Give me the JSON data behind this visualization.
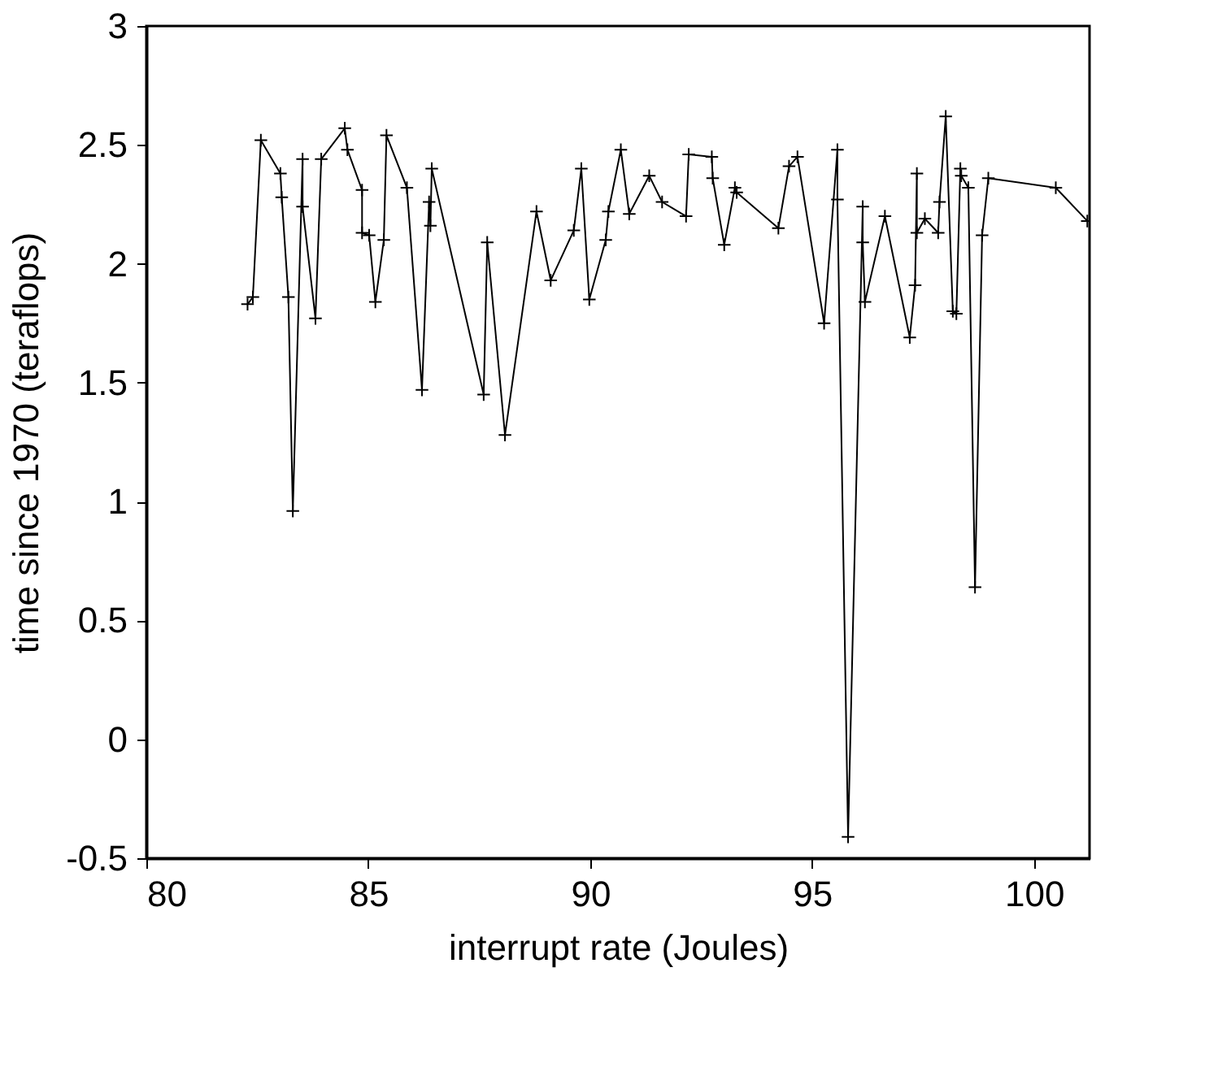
{
  "chart_data": {
    "type": "line",
    "xlabel": "interrupt rate (Joules)",
    "ylabel": "time since 1970 (teraflops)",
    "x": [
      82.28,
      82.4,
      82.58,
      83.02,
      83.05,
      83.2,
      83.3,
      83.52,
      83.52,
      83.81,
      83.94,
      84.47,
      84.53,
      84.86,
      84.86,
      85.02,
      85.16,
      85.35,
      85.41,
      85.87,
      86.21,
      86.37,
      86.4,
      86.43,
      87.6,
      87.68,
      88.08,
      88.79,
      89.11,
      89.63,
      89.8,
      89.98,
      90.35,
      90.41,
      90.69,
      90.88,
      91.33,
      91.62,
      92.16,
      92.22,
      92.74,
      92.76,
      93.02,
      93.26,
      93.3,
      94.24,
      94.48,
      94.67,
      95.27,
      95.57,
      95.57,
      95.81,
      96.14,
      96.14,
      96.19,
      96.64,
      97.2,
      97.32,
      97.36,
      97.36,
      97.54,
      97.84,
      97.87,
      98.01,
      98.17,
      98.25,
      98.34,
      98.36,
      98.52,
      98.67,
      98.83,
      98.97,
      100.49,
      101.2
    ],
    "series": [
      {
        "color": "#000000",
        "values": [
          1.83,
          1.86,
          2.52,
          2.38,
          2.28,
          1.86,
          0.96,
          2.44,
          2.24,
          1.77,
          2.44,
          2.57,
          2.48,
          2.31,
          2.13,
          2.12,
          1.84,
          2.1,
          2.54,
          2.32,
          1.47,
          2.26,
          2.16,
          2.4,
          1.45,
          2.09,
          1.28,
          2.22,
          1.93,
          2.14,
          2.4,
          1.85,
          2.1,
          2.22,
          2.48,
          2.21,
          2.37,
          2.26,
          2.2,
          2.46,
          2.45,
          2.36,
          2.08,
          2.32,
          2.3,
          2.15,
          2.41,
          2.45,
          1.75,
          2.48,
          2.27,
          -0.41,
          2.24,
          2.09,
          1.84,
          2.2,
          1.69,
          1.91,
          2.38,
          2.13,
          2.19,
          2.13,
          2.26,
          2.62,
          1.8,
          1.79,
          2.4,
          2.37,
          2.32,
          0.64,
          2.12,
          2.36,
          2.32,
          2.18
        ]
      }
    ],
    "xlim": [
      80,
      101.25
    ],
    "xticks": [
      80,
      85,
      90,
      95,
      100
    ],
    "ylim": [
      -0.5,
      3
    ],
    "yticks": [
      {
        "value": -0.5,
        "label": "-0.5"
      },
      0,
      0.5,
      1,
      1.5,
      2,
      2.5,
      3
    ],
    "marker": "cross",
    "line_style": "solid",
    "grid": false
  }
}
